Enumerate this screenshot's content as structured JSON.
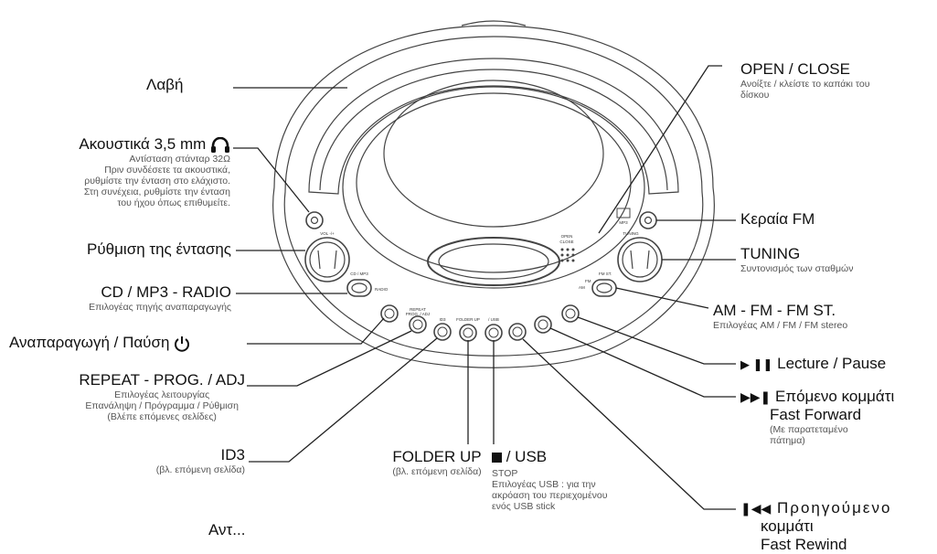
{
  "labels": {
    "handle": "Λαβή",
    "headphones": "Ακουστικά 3,5 mm",
    "headphones_desc": [
      "Αντίσταση στάνταρ 32Ω",
      "Πριν συνδέσετε τα ακουστικά,",
      "ρυθμίστε την ένταση στο ελάχιστο.",
      "Στη συνέχεια, ρυθμίστε την ένταση",
      "του ήχου όπως επιθυμείτε."
    ],
    "volume": "Ρύθμιση της έντασης",
    "source": "CD / MP3  - RADIO",
    "source_desc": "Επιλογέας πηγής αναπαραγωγής",
    "play_pause": "Αναπαραγωγή / Παύση",
    "repeat": "REPEAT - PROG. / ADJ",
    "repeat_desc": [
      "Επιλογέας λειτουργίας",
      "Επανάληψη / Πρόγραμμα / Ρύθμιση",
      "(Βλέπε επόμενες σελίδες)"
    ],
    "id3": "ID3",
    "id3_desc": "(βλ. επόμενη σελίδα)",
    "folder_up": "FOLDER UP",
    "folder_up_desc": "(βλ. επόμενη σελίδα)",
    "usb": "/ USB",
    "usb_desc": [
      "STOP",
      "Επιλογέας USB : για την",
      "ακρόαση του περιεχομένου",
      "ενός USB stick"
    ],
    "open_close": "OPEN / CLOSE",
    "open_close_desc": [
      "Ανοίξτε / κλείστε το καπάκι του",
      "δίσκου"
    ],
    "fm_antenna": "Κεραία FM",
    "tuning": "TUNING",
    "tuning_desc": "Συντονισμός των σταθμών",
    "band": "AM - FM - FM ST.",
    "band_desc": "Επιλογέας AM / FM / FM stereo",
    "lecture": "Lecture / Pause",
    "next": "Επόμενο κομμάτι",
    "next_sub": "Fast Forward",
    "next_desc": [
      "(Με παρατεταμένο",
      "πάτημα)"
    ],
    "prev": "Προηγούμενο",
    "prev_line2": "κομμάτι",
    "prev_line3": "Fast Rewind",
    "bottom_partial": "Αντ..."
  },
  "device_labels": {
    "vol": "VOL -/+",
    "cd_mp3": "CD / MP3",
    "radio": "RADIO",
    "repeat_btn": [
      "REPEAT",
      "PROG. / ADJ"
    ],
    "id3_btn": "ID3",
    "folder_btn": "FOLDER UP",
    "usb_btn": "/ USB",
    "fm_st": "FM ST.",
    "fm": "FM",
    "am": "AM",
    "tuning": "TUNING",
    "mp3": "MP3",
    "open_close_lid": [
      "OPEN",
      "CLOSE"
    ]
  }
}
